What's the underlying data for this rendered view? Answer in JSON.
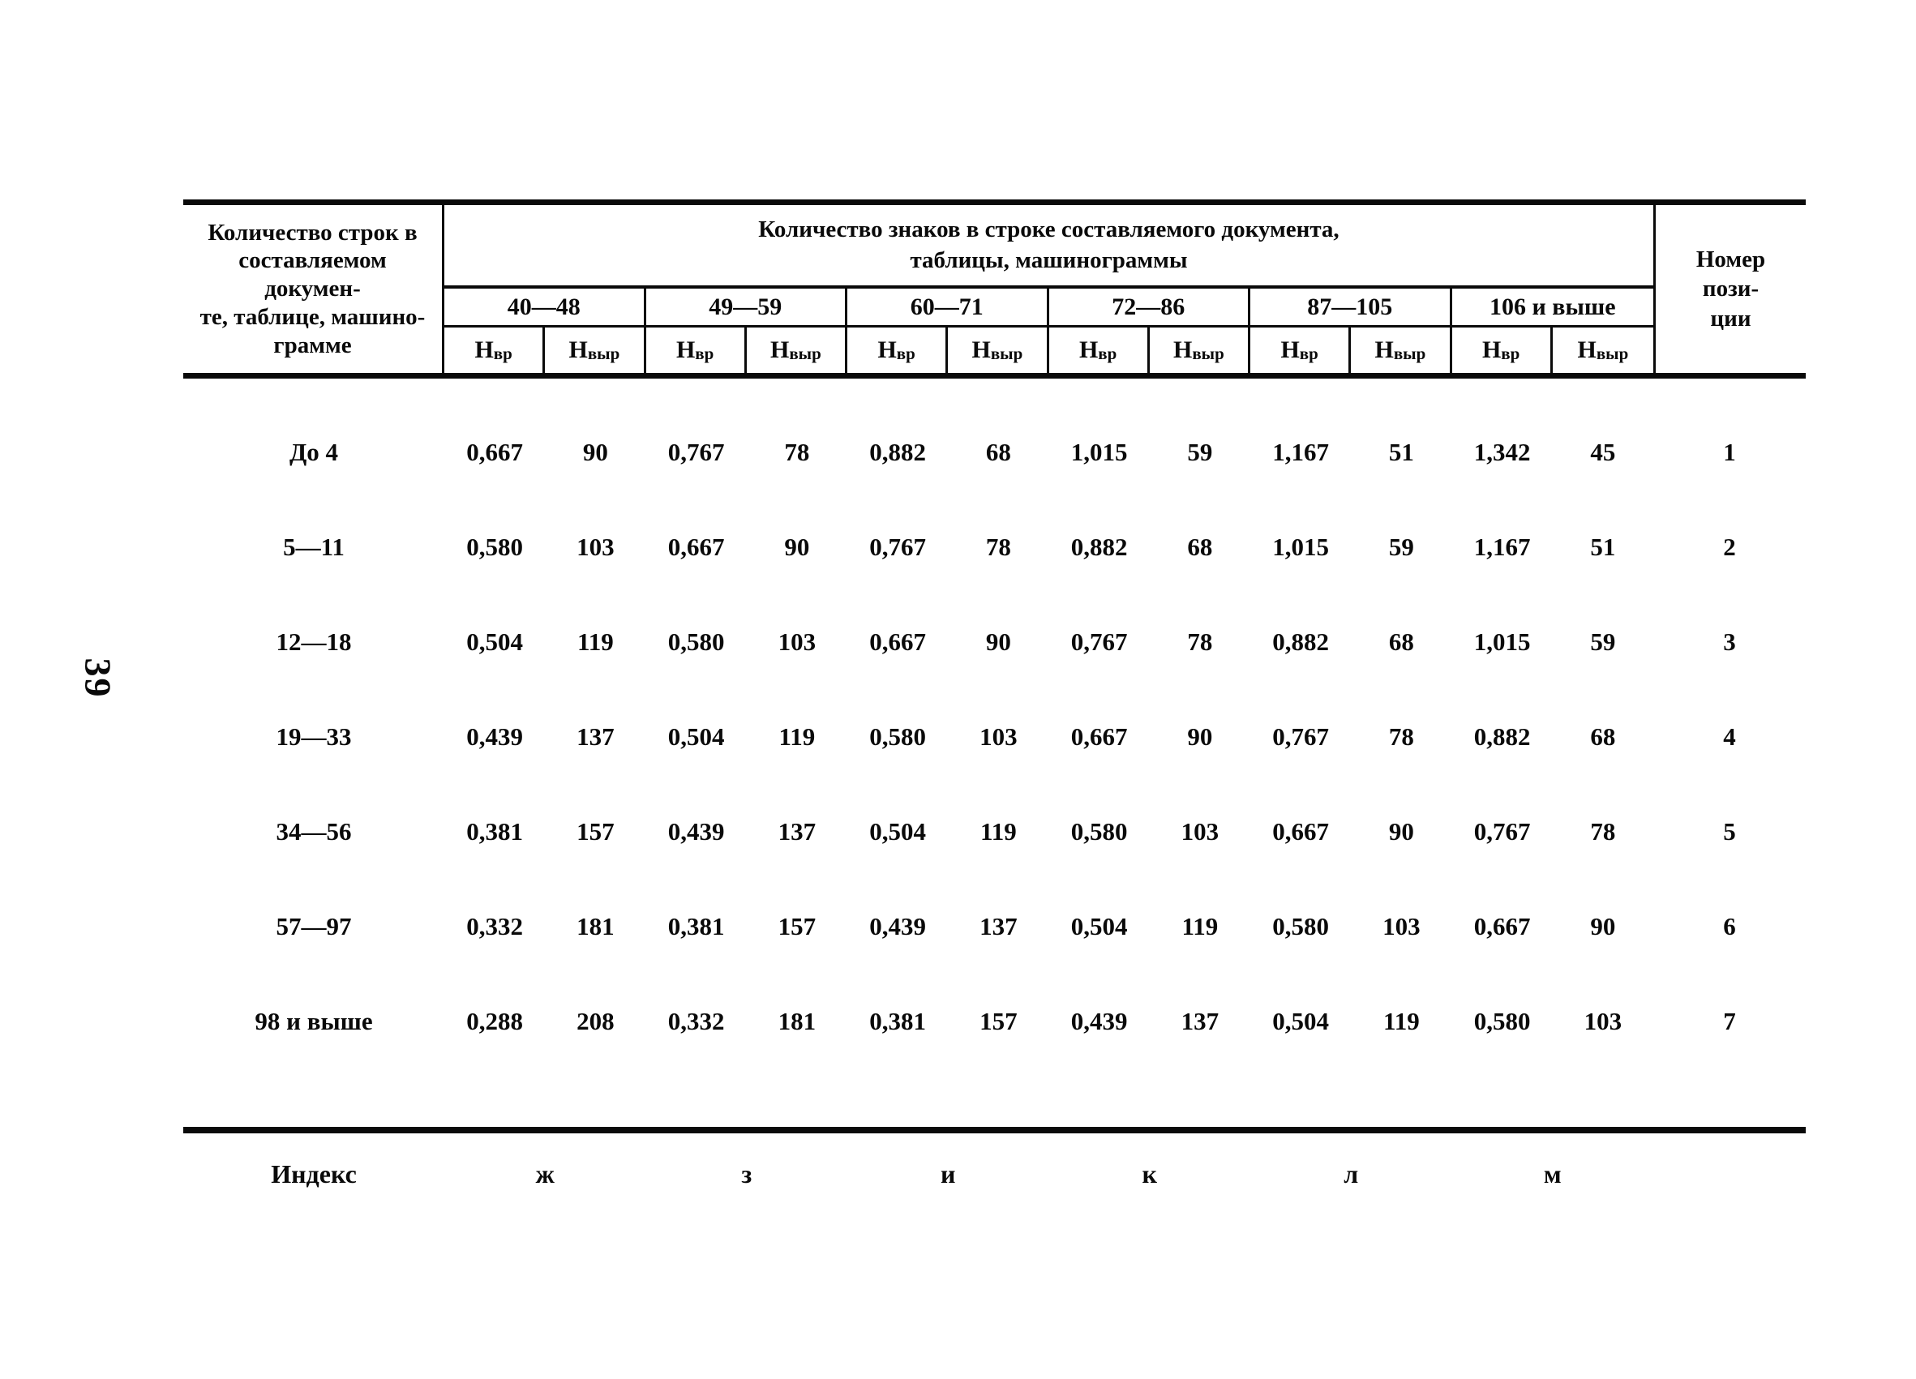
{
  "page": {
    "number": "39"
  },
  "table": {
    "corner_label": "Количество строк в\nсоставляемом докумен-\nте, таблице, машино-\nграмме",
    "span_label": "Количество знаков в строке составляемого документа,\nтаблицы, машинограммы",
    "position_label": "Номер\nпози-\nции",
    "groups": [
      "40—48",
      "49—59",
      "60—71",
      "72—86",
      "87—105",
      "106 и выше"
    ],
    "subcol": {
      "base": "Н",
      "time_sub": "вр",
      "output_sub": "выр"
    },
    "rows": [
      {
        "label": "До 4",
        "values": [
          "0,667",
          "90",
          "0,767",
          "78",
          "0,882",
          "68",
          "1,015",
          "59",
          "1,167",
          "51",
          "1,342",
          "45"
        ],
        "position": "1"
      },
      {
        "label": "5—11",
        "values": [
          "0,580",
          "103",
          "0,667",
          "90",
          "0,767",
          "78",
          "0,882",
          "68",
          "1,015",
          "59",
          "1,167",
          "51"
        ],
        "position": "2"
      },
      {
        "label": "12—18",
        "values": [
          "0,504",
          "119",
          "0,580",
          "103",
          "0,667",
          "90",
          "0,767",
          "78",
          "0,882",
          "68",
          "1,015",
          "59"
        ],
        "position": "3"
      },
      {
        "label": "19—33",
        "values": [
          "0,439",
          "137",
          "0,504",
          "119",
          "0,580",
          "103",
          "0,667",
          "90",
          "0,767",
          "78",
          "0,882",
          "68"
        ],
        "position": "4"
      },
      {
        "label": "34—56",
        "values": [
          "0,381",
          "157",
          "0,439",
          "137",
          "0,504",
          "119",
          "0,580",
          "103",
          "0,667",
          "90",
          "0,767",
          "78"
        ],
        "position": "5"
      },
      {
        "label": "57—97",
        "values": [
          "0,332",
          "181",
          "0,381",
          "157",
          "0,439",
          "137",
          "0,504",
          "119",
          "0,580",
          "103",
          "0,667",
          "90"
        ],
        "position": "6"
      },
      {
        "label": "98 и выше",
        "values": [
          "0,288",
          "208",
          "0,332",
          "181",
          "0,381",
          "157",
          "0,439",
          "137",
          "0,504",
          "119",
          "0,580",
          "103"
        ],
        "position": "7"
      }
    ],
    "index_row": {
      "label": "Индекс",
      "letters": [
        "ж",
        "з",
        "и",
        "к",
        "л",
        "м"
      ]
    }
  }
}
